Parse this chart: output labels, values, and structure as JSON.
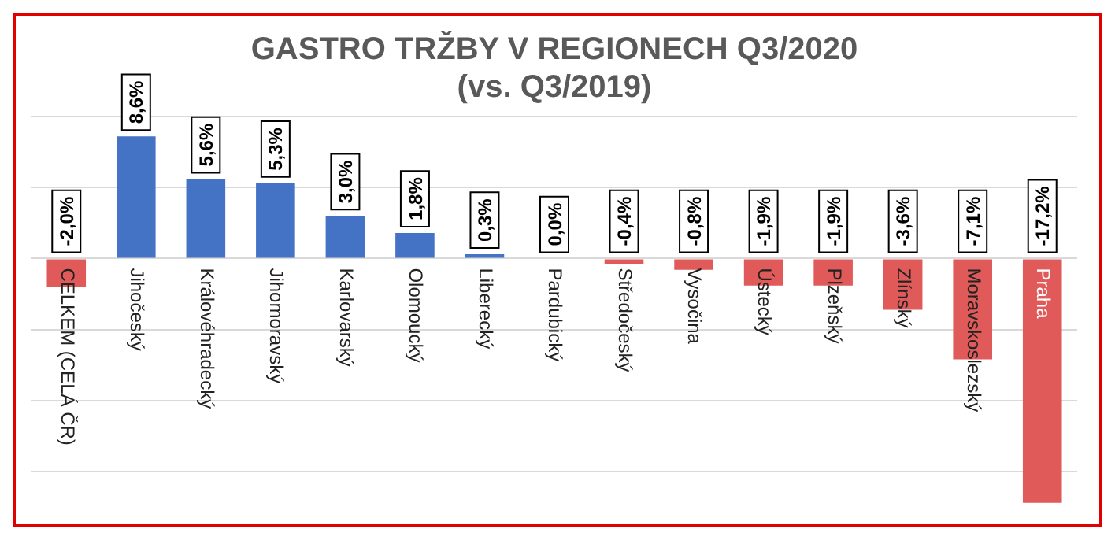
{
  "chart_data": {
    "type": "bar",
    "title": [
      "GASTRO TRŽBY V REGIONECH Q3/2020",
      "(vs. Q3/2019)"
    ],
    "categories": [
      "CELKEM (CELÁ ČR)",
      "Jihočeský",
      "Královéhradecký",
      "Jihomoravský",
      "Karlovarský",
      "Olomoucký",
      "Liberecký",
      "Pardubický",
      "Středočeský",
      "Vysočina",
      "Ústecký",
      "Plzeňský",
      "Zlínský",
      "Moravskoslezský",
      "Praha"
    ],
    "values": [
      -2.0,
      8.6,
      5.6,
      5.3,
      3.0,
      1.8,
      0.3,
      0.0,
      -0.4,
      -0.8,
      -1.9,
      -1.9,
      -3.6,
      -7.1,
      -17.2
    ],
    "value_labels": [
      "-2,0%",
      "8,6%",
      "5,6%",
      "5,3%",
      "3,0%",
      "1,8%",
      "0,3%",
      "0,0%",
      "-0,4%",
      "-0,8%",
      "-1,9%",
      "-1,9%",
      "-3,6%",
      "-7,1%",
      "-17,2%"
    ],
    "colors": [
      "#e05a5a",
      "#4472c4",
      "#4472c4",
      "#4472c4",
      "#4472c4",
      "#4472c4",
      "#4472c4",
      "#4472c4",
      "#e05a5a",
      "#e05a5a",
      "#e05a5a",
      "#e05a5a",
      "#e05a5a",
      "#e05a5a",
      "#e05a5a"
    ],
    "ylim": [
      -17.6,
      10
    ],
    "yticks": [
      {
        "value": -15,
        "label": null
      },
      {
        "value": -10,
        "label": null
      },
      {
        "value": -5,
        "label": null
      },
      {
        "value": 0,
        "label": null
      },
      {
        "value": 5,
        "label": null
      },
      {
        "value": 10,
        "label": null
      }
    ],
    "grid": "y",
    "tick_labels": "x",
    "legend": false
  }
}
